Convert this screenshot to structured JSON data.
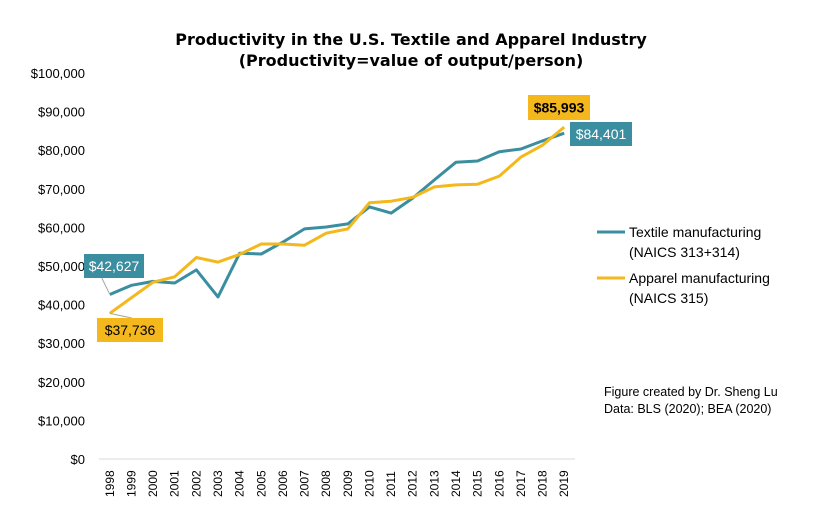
{
  "chart_data": {
    "type": "line",
    "title": "Productivity in the U.S. Textile and Apparel Industry",
    "subtitle": "(Productivity=value of output/person)",
    "xlabel": "",
    "ylabel": "",
    "ylim": [
      0,
      100000
    ],
    "y_ticks": [
      0,
      10000,
      20000,
      30000,
      40000,
      50000,
      60000,
      70000,
      80000,
      90000,
      100000
    ],
    "y_tick_labels": [
      "$0",
      "$10,000",
      "$20,000",
      "$30,000",
      "$40,000",
      "$50,000",
      "$60,000",
      "$70,000",
      "$80,000",
      "$90,000",
      "$100,000"
    ],
    "categories": [
      "1998",
      "1999",
      "2000",
      "2001",
      "2002",
      "2003",
      "2004",
      "2005",
      "2006",
      "2007",
      "2008",
      "2009",
      "2010",
      "2011",
      "2012",
      "2013",
      "2014",
      "2015",
      "2016",
      "2017",
      "2018",
      "2019"
    ],
    "grid": false,
    "legend_position": "right",
    "series": [
      {
        "name": "Textile manufacturing",
        "name_line2": "(NAICS 313+314)",
        "color": "#3A8EA0",
        "values": [
          42627,
          45000,
          46000,
          45600,
          49000,
          42000,
          53300,
          53100,
          56200,
          59600,
          60100,
          60900,
          65300,
          63700,
          67600,
          72300,
          76900,
          77200,
          79600,
          80300,
          82400,
          84401
        ]
      },
      {
        "name": "Apparel manufacturing",
        "name_line2": "(NAICS 315)",
        "color": "#F4B81C",
        "values": [
          37736,
          41800,
          45800,
          47200,
          52200,
          51000,
          53000,
          55700,
          55700,
          55400,
          58500,
          59600,
          66400,
          66800,
          67800,
          70500,
          71000,
          71200,
          73300,
          78200,
          81300,
          85993
        ]
      }
    ],
    "annotations": [
      {
        "series": 0,
        "index": 0,
        "text": "$42,627"
      },
      {
        "series": 1,
        "index": 0,
        "text": "$37,736"
      },
      {
        "series": 0,
        "index": 21,
        "text": "$84,401"
      },
      {
        "series": 1,
        "index": 21,
        "text": "$85,993"
      }
    ],
    "note_lines": [
      "Figure created by Dr. Sheng Lu",
      "Data:  BLS (2020); BEA (2020)"
    ]
  }
}
